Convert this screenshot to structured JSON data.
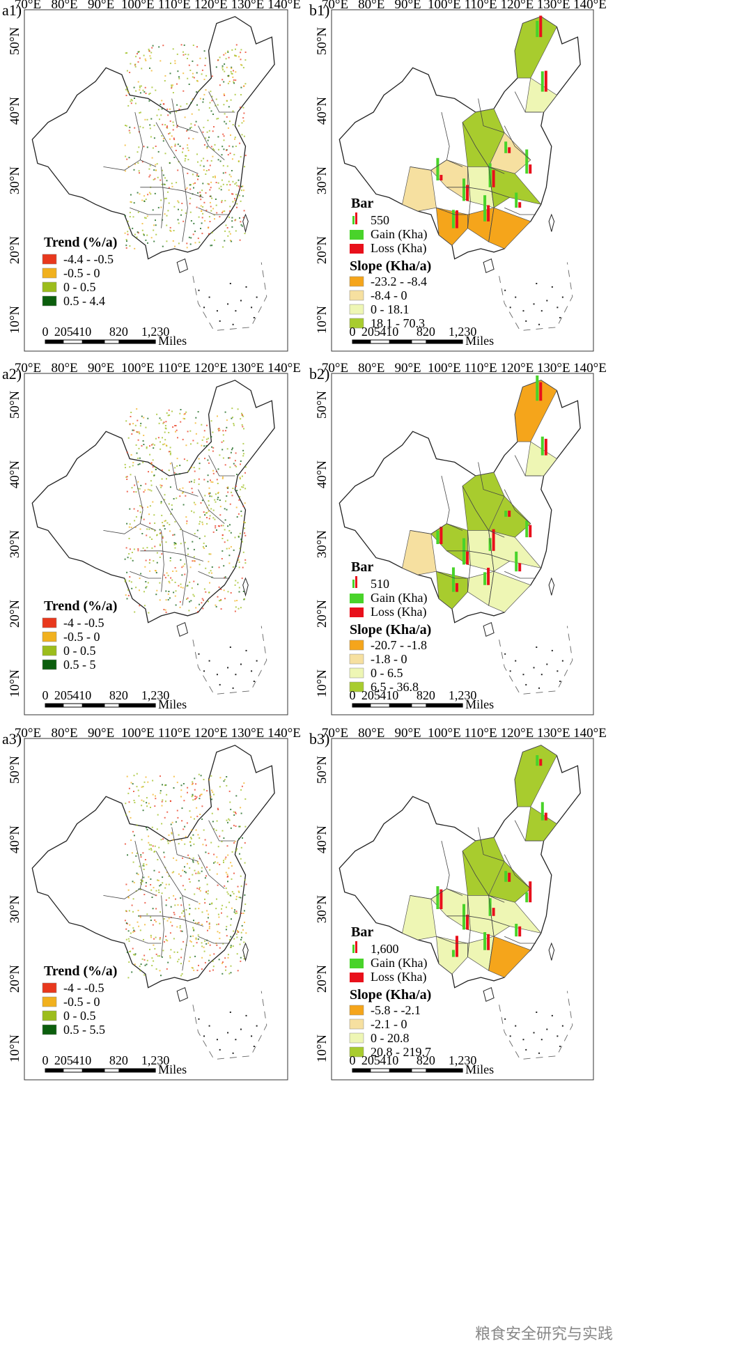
{
  "colors": {
    "trend": [
      "#e8381d",
      "#f1b11e",
      "#9cbd1c",
      "#0b5e0d"
    ],
    "slope": [
      "#f5a51b",
      "#f6e0a0",
      "#eef6b4",
      "#a8cc2e"
    ],
    "gain": "#49d32a",
    "loss": "#e8101b"
  },
  "top_axis": [
    "70°E",
    "80°E",
    "90°E",
    "100°E",
    "110°E",
    "120°E",
    "130°E",
    "140°E"
  ],
  "left_axis": [
    "50°N",
    "40°N",
    "30°N",
    "20°N",
    "10°N"
  ],
  "scalebar": {
    "ticks": [
      "0",
      "205",
      "410",
      "820",
      "1,230"
    ],
    "unit": "Miles"
  },
  "panels": [
    {
      "label": "a1)",
      "type": "trend",
      "legend_title": "Trend (%/a)",
      "items": [
        "-4.4 - -0.5",
        "-0.5 - 0",
        "0 - 0.5",
        "0.5 - 4.4"
      ]
    },
    {
      "label": "b1)",
      "type": "slope",
      "bar_title": "Bar",
      "bar_value": "550",
      "gain_label": "Gain (Kha)",
      "loss_label": "Loss (Kha)",
      "slope_title": "Slope (Kha/a)",
      "items": [
        "-23.2 - -8.4",
        "-8.4 - 0",
        "0 - 18.1",
        "18.1 - 70.3"
      ]
    },
    {
      "label": "a2)",
      "type": "trend",
      "legend_title": "Trend (%/a)",
      "items": [
        "-4 - -0.5",
        "-0.5 - 0",
        "0 - 0.5",
        "0.5 - 5"
      ]
    },
    {
      "label": "b2)",
      "type": "slope",
      "bar_title": "Bar",
      "bar_value": "510",
      "gain_label": "Gain (Kha)",
      "loss_label": "Loss (Kha)",
      "slope_title": "Slope (Kha/a)",
      "items": [
        "-20.7 - -1.8",
        "-1.8 - 0",
        "0 - 6.5",
        "6.5 - 36.8"
      ]
    },
    {
      "label": "a3)",
      "type": "trend",
      "legend_title": "Trend (%/a)",
      "items": [
        "-4 - -0.5",
        "-0.5 - 0",
        "0 - 0.5",
        "0.5 - 5.5"
      ]
    },
    {
      "label": "b3)",
      "type": "slope",
      "bar_title": "Bar",
      "bar_value": "1,600",
      "gain_label": "Gain (Kha)",
      "loss_label": "Loss (Kha)",
      "slope_title": "Slope (Kha/a)",
      "items": [
        "-5.8 - -2.1",
        "-2.1 - 0",
        "0 - 20.8",
        "20.8 - 219.7"
      ]
    }
  ],
  "watermark": "粮食安全研究与实践"
}
